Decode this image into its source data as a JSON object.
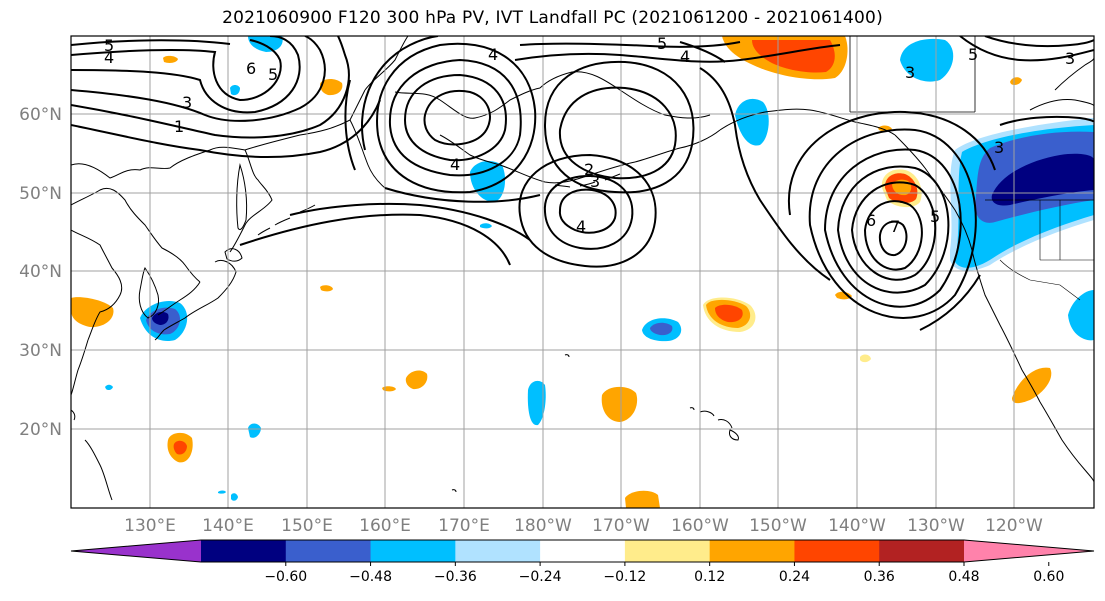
{
  "title": "2021060900 F120 300 hPa PV, IVT Landfall PC (2021061200 - 2021061400)",
  "latitude_labels": [
    "60°N",
    "50°N",
    "40°N",
    "30°N",
    "20°N"
  ],
  "longitude_labels": [
    "130°E",
    "140°E",
    "150°E",
    "160°E",
    "170°E",
    "180°W",
    "170°W",
    "160°W",
    "150°W",
    "140°W",
    "130°W",
    "120°W"
  ],
  "colorbar": {
    "tick_labels": [
      "−0.60",
      "−0.48",
      "−0.36",
      "−0.24",
      "−0.12",
      "0.12",
      "0.24",
      "0.36",
      "0.48",
      "0.60"
    ],
    "colors": [
      "#9932cc",
      "#000080",
      "#3a5fcd",
      "#00bfff",
      "#b0e2ff",
      "#ffffff",
      "#ffec8b",
      "#ffa500",
      "#ff4500",
      "#b22222",
      "#ff82ab"
    ],
    "extend": "both"
  },
  "pv_contour_labels": [
    "5",
    "4",
    "6",
    "5",
    "3",
    "1",
    "4",
    "2",
    "3",
    "4",
    "5",
    "4",
    "3",
    "5",
    "4",
    "3",
    "6",
    "7",
    "5",
    "3"
  ],
  "colors": {
    "contour": "#000000",
    "grid": "#a0a0a0",
    "coast": "#000000",
    "axis_label": "#7f7f7f"
  }
}
